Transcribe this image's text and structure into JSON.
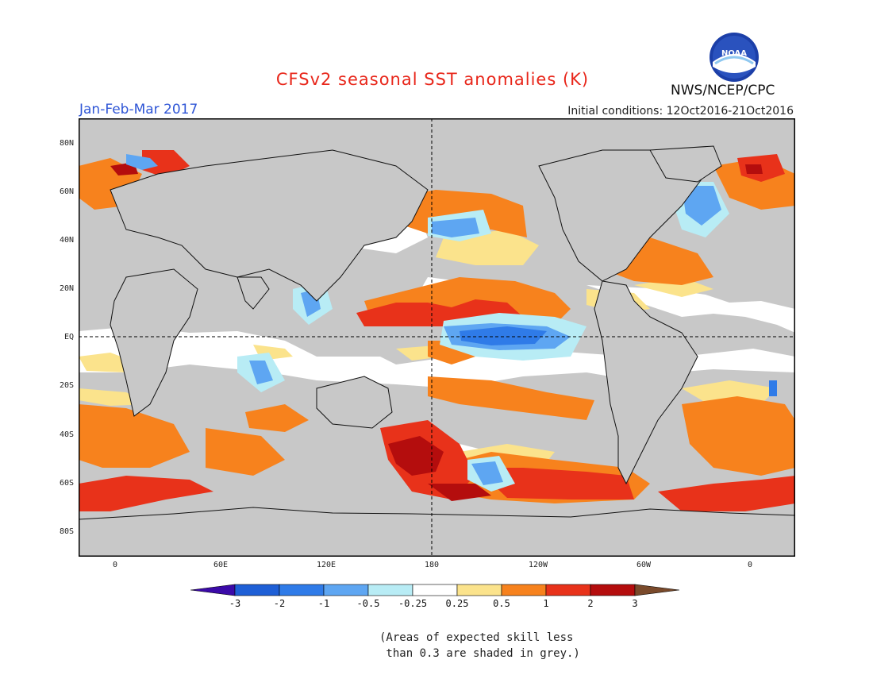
{
  "header": {
    "title": "CFSv2 seasonal SST anomalies (K)",
    "period": "Jan-Feb-Mar 2017",
    "initial_conditions": "Initial conditions: 12Oct2016-21Oct2016",
    "agency": "NWS/NCEP/CPC",
    "logo_text": "NOAA"
  },
  "map": {
    "lat_labels": [
      "80N",
      "60N",
      "40N",
      "20N",
      "EQ",
      "20S",
      "40S",
      "60S",
      "80S"
    ],
    "lon_labels": [
      "0",
      "60E",
      "120E",
      "180",
      "120W",
      "60W",
      "0"
    ]
  },
  "colorbar": {
    "labels": [
      "-3",
      "-2",
      "-1",
      "-0.5",
      "-0.25",
      "0.25",
      "0.5",
      "1",
      "2",
      "3"
    ],
    "colors": [
      "#3b0aa8",
      "#1e5fd6",
      "#2f7be8",
      "#5ea6f2",
      "#b8ecf5",
      "#ffffff",
      "#fbe38c",
      "#f7821d",
      "#e8321a",
      "#b40d0d",
      "#7a4a2b"
    ]
  },
  "note": {
    "line1": "(Areas of expected skill less",
    "line2": " than 0.3 are shaded in grey.)"
  }
}
